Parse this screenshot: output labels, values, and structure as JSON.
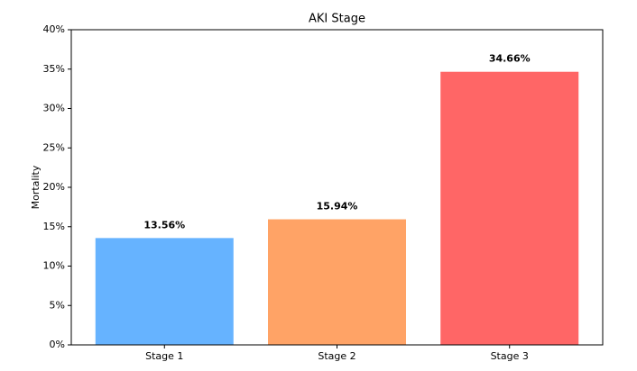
{
  "chart_data": {
    "type": "bar",
    "title": "AKI Stage",
    "y_label": "Mortality",
    "categories": [
      "Stage 1",
      "Stage 2",
      "Stage 3"
    ],
    "values": [
      13.56,
      15.94,
      34.66
    ],
    "value_labels": [
      "13.56%",
      "15.94%",
      "34.66%"
    ],
    "colors": [
      "#66b3ff",
      "#ffa366",
      "#ff6666"
    ],
    "ylim": [
      0,
      40
    ],
    "yticks": [
      {
        "value": 0,
        "label": "0%"
      },
      {
        "value": 5,
        "label": "5%"
      },
      {
        "value": 10,
        "label": "10%"
      },
      {
        "value": 15,
        "label": "15%"
      },
      {
        "value": 20,
        "label": "20%"
      },
      {
        "value": 25,
        "label": "25%"
      },
      {
        "value": 30,
        "label": "30%"
      },
      {
        "value": 35,
        "label": "35%"
      },
      {
        "value": 40,
        "label": "40%"
      }
    ],
    "grid": false
  }
}
